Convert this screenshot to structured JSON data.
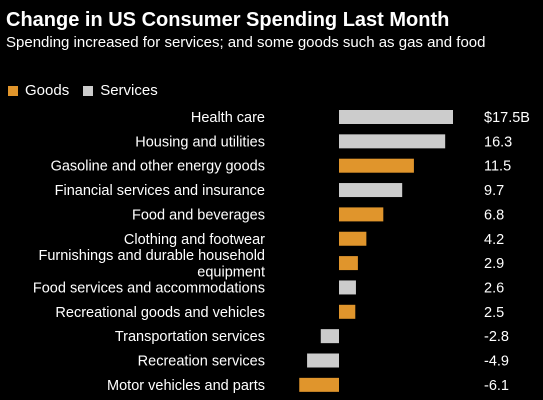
{
  "title": "Change in US Consumer Spending Last Month",
  "subtitle": "Spending increased for services; and some goods such as gas and food",
  "colors": {
    "goods": "#e0952c",
    "services": "#cccccc",
    "text": "#ffffff",
    "background": "#000000"
  },
  "legend": {
    "goods": "Goods",
    "services": "Services"
  },
  "chart_data": {
    "type": "bar",
    "orientation": "horizontal",
    "title": "Change in US Consumer Spending Last Month",
    "subtitle": "Spending increased for services; and some goods such as gas and food",
    "legend_position": "top-left",
    "grid": false,
    "xlim": [
      -6.1,
      17.5
    ],
    "categories": [
      "Health care",
      "Housing and utilities",
      "Gasoline and other energy goods",
      "Financial services and insurance",
      "Food and beverages",
      "Clothing and footwear",
      "Furnishings and durable household equipment",
      "Food services and accommodations",
      "Recreational goods and vehicles",
      "Transportation services",
      "Recreation services",
      "Motor vehicles and parts"
    ],
    "values": [
      17.5,
      16.3,
      11.5,
      9.7,
      6.8,
      4.2,
      2.9,
      2.6,
      2.5,
      -2.8,
      -4.9,
      -6.1
    ],
    "value_labels": [
      "$17.5B",
      "16.3",
      "11.5",
      "9.7",
      "6.8",
      "4.2",
      "2.9",
      "2.6",
      "2.5",
      "-2.8",
      "-4.9",
      "-6.1"
    ],
    "types": [
      "services",
      "services",
      "goods",
      "services",
      "goods",
      "goods",
      "goods",
      "services",
      "goods",
      "services",
      "services",
      "goods"
    ],
    "label_lines": [
      [
        "Health care"
      ],
      [
        "Housing and utilities"
      ],
      [
        "Gasoline and other energy goods"
      ],
      [
        "Financial services and insurance"
      ],
      [
        "Food and beverages"
      ],
      [
        "Clothing and footwear"
      ],
      [
        "Furnishings and durable household",
        "equipment"
      ],
      [
        "Food services and accommodations"
      ],
      [
        "Recreational goods and vehicles"
      ],
      [
        "Transportation services"
      ],
      [
        "Recreation services"
      ],
      [
        "Motor vehicles and parts"
      ]
    ]
  }
}
